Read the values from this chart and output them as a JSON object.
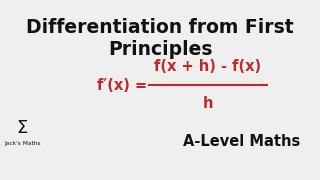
{
  "background_color": "#efefef",
  "title_line1": "Differentiation from First",
  "title_line2": "Principles",
  "title_color": "#111111",
  "title_fontsize": 13.5,
  "title_fontweight": "bold",
  "formula_color": "#c0282d",
  "formula_fontsize": 10.5,
  "formula_fontweight": "bold",
  "formula_numerator": "f(x + h) - f(x)",
  "formula_denominator": "h",
  "subtitle": "A-Level Maths",
  "subtitle_color": "#111111",
  "subtitle_fontsize": 10.5,
  "subtitle_fontweight": "bold",
  "sigma_fontsize": 13,
  "sigma_color": "#111111",
  "jacks_maths_text": "Jack's Maths",
  "jacks_maths_fontsize": 4.2
}
